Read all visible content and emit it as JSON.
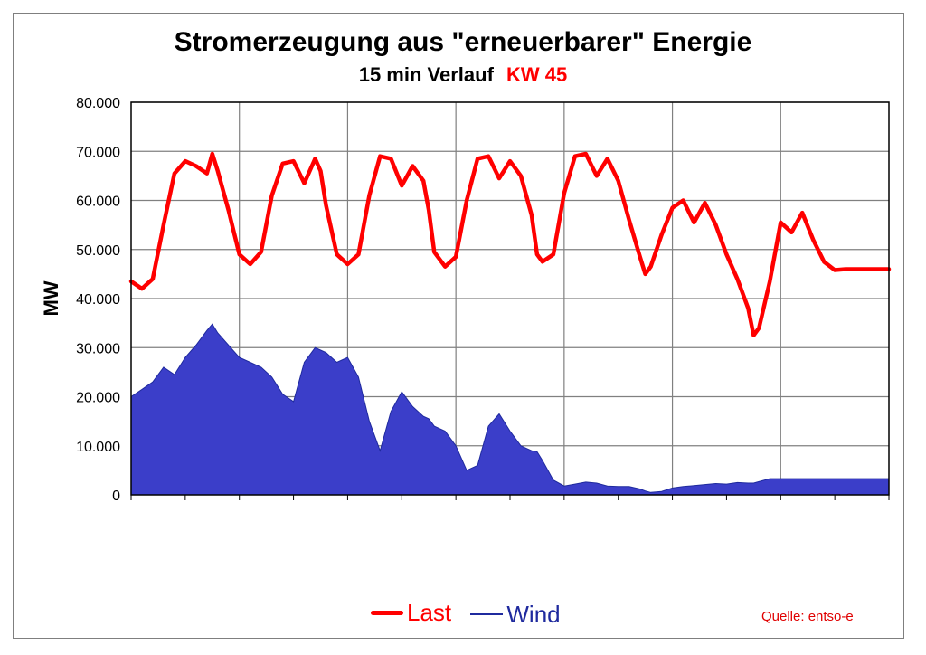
{
  "colors": {
    "last": "#ff0000",
    "wind": "#3b3ec9",
    "wind_line": "#1f2a9e",
    "grid": "#808080",
    "source": "#e00000"
  },
  "chart_data": {
    "type": "area",
    "title": "Stromerzeugung aus \"erneuerbarer\" Energie",
    "subtitle": "15 min Verlauf",
    "subtitle_highlight": "KW 45",
    "ylabel": "MW",
    "ylim": [
      0,
      80000
    ],
    "yticks": [
      0,
      10000,
      20000,
      30000,
      40000,
      50000,
      60000,
      70000,
      80000
    ],
    "ytick_labels": [
      "0",
      "10.000",
      "20.000",
      "30.000",
      "40.000",
      "50.000",
      "60.000",
      "70.000",
      "80.000"
    ],
    "x_range": [
      0,
      7
    ],
    "grid": true,
    "legend_position": "bottom",
    "source": "Quelle: entso-e",
    "series": [
      {
        "name": "Last",
        "type": "line",
        "x": [
          0,
          0.1,
          0.2,
          0.3,
          0.4,
          0.5,
          0.6,
          0.7,
          0.75,
          0.8,
          0.9,
          1.0,
          1.1,
          1.2,
          1.3,
          1.4,
          1.5,
          1.6,
          1.7,
          1.75,
          1.8,
          1.9,
          2.0,
          2.1,
          2.2,
          2.3,
          2.4,
          2.5,
          2.6,
          2.7,
          2.75,
          2.8,
          2.9,
          3.0,
          3.1,
          3.2,
          3.3,
          3.4,
          3.5,
          3.6,
          3.7,
          3.75,
          3.8,
          3.9,
          4.0,
          4.1,
          4.2,
          4.3,
          4.4,
          4.5,
          4.6,
          4.7,
          4.75,
          4.8,
          4.9,
          5.0,
          5.1,
          5.2,
          5.3,
          5.4,
          5.5,
          5.6,
          5.7,
          5.75,
          5.8,
          5.9,
          6.0,
          6.05,
          6.1,
          6.2,
          6.3,
          6.4,
          6.5,
          6.6,
          6.7,
          6.75,
          6.8,
          6.9,
          7.0
        ],
        "values": [
          43500,
          42000,
          44000,
          55000,
          65500,
          68000,
          67000,
          65500,
          69500,
          66000,
          58000,
          49000,
          47000,
          49500,
          61000,
          67500,
          68000,
          63500,
          68500,
          66000,
          59000,
          49000,
          47000,
          49000,
          61000,
          69000,
          68500,
          63000,
          67000,
          64000,
          58000,
          49500,
          46500,
          48500,
          60000,
          68500,
          69000,
          64500,
          68000,
          65000,
          57000,
          49000,
          47500,
          49000,
          61500,
          69000,
          69500,
          65000,
          68500,
          64000,
          56000,
          48500,
          45000,
          46500,
          53000,
          58500,
          60000,
          55500,
          59500,
          55000,
          49000,
          44000,
          38000,
          32500,
          34000,
          43500,
          55500,
          54500,
          53500,
          57500,
          52000,
          47500,
          45800,
          46000,
          46000,
          46000,
          46000,
          46000,
          46000
        ]
      },
      {
        "name": "Wind",
        "type": "area",
        "x": [
          0,
          0.1,
          0.2,
          0.3,
          0.4,
          0.5,
          0.6,
          0.7,
          0.75,
          0.8,
          0.9,
          1.0,
          1.1,
          1.2,
          1.3,
          1.4,
          1.5,
          1.6,
          1.7,
          1.75,
          1.8,
          1.9,
          2.0,
          2.1,
          2.2,
          2.3,
          2.4,
          2.5,
          2.6,
          2.7,
          2.75,
          2.8,
          2.9,
          3.0,
          3.1,
          3.2,
          3.3,
          3.4,
          3.5,
          3.6,
          3.7,
          3.75,
          3.8,
          3.9,
          4.0,
          4.1,
          4.2,
          4.3,
          4.4,
          4.5,
          4.6,
          4.7,
          4.75,
          4.8,
          4.9,
          5.0,
          5.1,
          5.2,
          5.3,
          5.4,
          5.5,
          5.6,
          5.7,
          5.75,
          5.8,
          5.9,
          6.0,
          6.05,
          6.1,
          6.2,
          6.3,
          6.4,
          6.5,
          6.6,
          6.7,
          6.75,
          6.8,
          6.9,
          7.0
        ],
        "values": [
          20000,
          21500,
          23000,
          26000,
          24500,
          28000,
          30500,
          33500,
          34800,
          33000,
          30500,
          28000,
          27000,
          26000,
          24000,
          20500,
          19000,
          27000,
          30000,
          29500,
          29000,
          27000,
          28000,
          24000,
          15000,
          9000,
          17000,
          21000,
          18000,
          16000,
          15500,
          14000,
          13000,
          10000,
          5000,
          6000,
          14000,
          16500,
          13000,
          10000,
          9000,
          8800,
          7000,
          3000,
          1800,
          2200,
          2600,
          2400,
          1800,
          1700,
          1700,
          1200,
          800,
          500,
          700,
          1400,
          1700,
          1900,
          2100,
          2300,
          2200,
          2500,
          2400,
          2400,
          2700,
          3300,
          3300,
          3300,
          3300,
          3300,
          3300,
          3300,
          3300,
          3300,
          3300,
          3300,
          3300,
          3300,
          3300
        ]
      }
    ]
  }
}
